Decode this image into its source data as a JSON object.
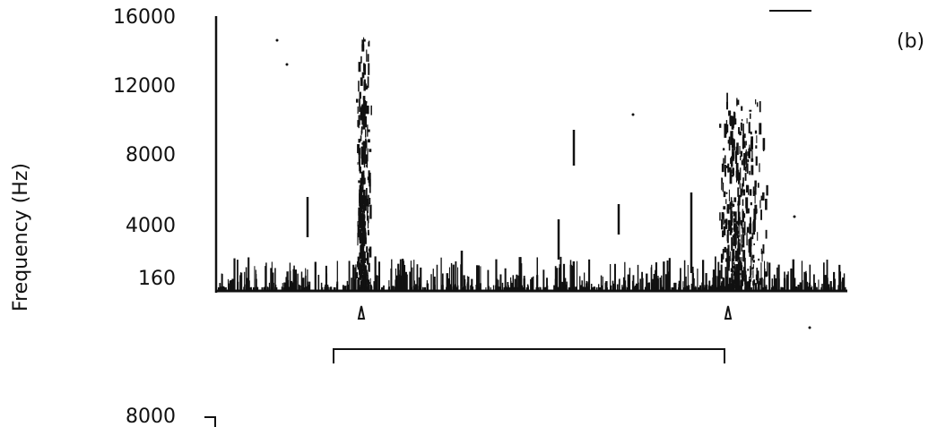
{
  "figure": {
    "label": "(b)",
    "y_axis_label": "Frequency (Hz)",
    "y_ticks": [
      "16000",
      "12000",
      "8000",
      "4000",
      "160"
    ],
    "lower_y_tick": "8000"
  }
}
